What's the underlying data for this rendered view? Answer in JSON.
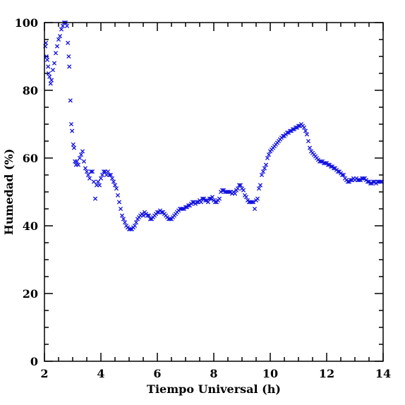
{
  "chart_data": {
    "type": "scatter",
    "xlabel": "Tiempo Universal (h)",
    "ylabel": "Humedad (%)",
    "xlim": [
      2,
      14
    ],
    "ylim": [
      0,
      100
    ],
    "xticks": [
      "2",
      "4",
      "6",
      "8",
      "10",
      "12",
      "14"
    ],
    "yticks": [
      "0",
      "20",
      "40",
      "60",
      "80",
      "100"
    ],
    "grid": false,
    "marker": "x",
    "color": "#1010e0",
    "points": [
      [
        2.03,
        93
      ],
      [
        2.05,
        94
      ],
      [
        2.07,
        90
      ],
      [
        2.1,
        89
      ],
      [
        2.13,
        87
      ],
      [
        2.15,
        85
      ],
      [
        2.18,
        84
      ],
      [
        2.22,
        82
      ],
      [
        2.25,
        83
      ],
      [
        2.3,
        86
      ],
      [
        2.35,
        88
      ],
      [
        2.4,
        91
      ],
      [
        2.45,
        93
      ],
      [
        2.5,
        95
      ],
      [
        2.55,
        96
      ],
      [
        2.6,
        98
      ],
      [
        2.65,
        99
      ],
      [
        2.7,
        100
      ],
      [
        2.75,
        100
      ],
      [
        2.8,
        99
      ],
      [
        2.83,
        94
      ],
      [
        2.86,
        90
      ],
      [
        2.88,
        87
      ],
      [
        2.92,
        77
      ],
      [
        2.95,
        70
      ],
      [
        2.98,
        68
      ],
      [
        3.02,
        64
      ],
      [
        3.05,
        63
      ],
      [
        3.08,
        59
      ],
      [
        3.12,
        58
      ],
      [
        3.15,
        59
      ],
      [
        3.2,
        58
      ],
      [
        3.25,
        60
      ],
      [
        3.3,
        61
      ],
      [
        3.35,
        62
      ],
      [
        3.4,
        59
      ],
      [
        3.45,
        57
      ],
      [
        3.5,
        56
      ],
      [
        3.55,
        55
      ],
      [
        3.6,
        54
      ],
      [
        3.65,
        56
      ],
      [
        3.7,
        56
      ],
      [
        3.75,
        53
      ],
      [
        3.8,
        48
      ],
      [
        3.85,
        52
      ],
      [
        3.9,
        53
      ],
      [
        3.95,
        52
      ],
      [
        4.0,
        54
      ],
      [
        4.05,
        55
      ],
      [
        4.1,
        56
      ],
      [
        4.15,
        56
      ],
      [
        4.2,
        55
      ],
      [
        4.25,
        56
      ],
      [
        4.3,
        55
      ],
      [
        4.35,
        55
      ],
      [
        4.4,
        54
      ],
      [
        4.45,
        53
      ],
      [
        4.5,
        52
      ],
      [
        4.55,
        51
      ],
      [
        4.6,
        49
      ],
      [
        4.65,
        47
      ],
      [
        4.7,
        45
      ],
      [
        4.75,
        43
      ],
      [
        4.8,
        42
      ],
      [
        4.85,
        41
      ],
      [
        4.9,
        40
      ],
      [
        4.95,
        39.5
      ],
      [
        5.0,
        39
      ],
      [
        5.05,
        39
      ],
      [
        5.1,
        39
      ],
      [
        5.15,
        39.5
      ],
      [
        5.2,
        40
      ],
      [
        5.25,
        41
      ],
      [
        5.3,
        42
      ],
      [
        5.35,
        42.5
      ],
      [
        5.4,
        43
      ],
      [
        5.45,
        43.5
      ],
      [
        5.5,
        43
      ],
      [
        5.55,
        44
      ],
      [
        5.6,
        43.5
      ],
      [
        5.65,
        43
      ],
      [
        5.7,
        43
      ],
      [
        5.75,
        42
      ],
      [
        5.8,
        42
      ],
      [
        5.85,
        42.5
      ],
      [
        5.9,
        43
      ],
      [
        5.95,
        43.5
      ],
      [
        6.0,
        44
      ],
      [
        6.05,
        44
      ],
      [
        6.1,
        44.5
      ],
      [
        6.15,
        44
      ],
      [
        6.2,
        44
      ],
      [
        6.25,
        43.5
      ],
      [
        6.3,
        43
      ],
      [
        6.35,
        42.5
      ],
      [
        6.4,
        42
      ],
      [
        6.45,
        42
      ],
      [
        6.5,
        42
      ],
      [
        6.55,
        42.5
      ],
      [
        6.6,
        43
      ],
      [
        6.65,
        43.5
      ],
      [
        6.7,
        44
      ],
      [
        6.75,
        44.5
      ],
      [
        6.8,
        45
      ],
      [
        6.85,
        45
      ],
      [
        6.9,
        45
      ],
      [
        6.95,
        45
      ],
      [
        7.0,
        45.5
      ],
      [
        7.05,
        45.5
      ],
      [
        7.1,
        46
      ],
      [
        7.15,
        46
      ],
      [
        7.2,
        46.5
      ],
      [
        7.25,
        47
      ],
      [
        7.3,
        47
      ],
      [
        7.35,
        46.5
      ],
      [
        7.4,
        47
      ],
      [
        7.45,
        47
      ],
      [
        7.5,
        47.5
      ],
      [
        7.55,
        47
      ],
      [
        7.6,
        48
      ],
      [
        7.65,
        48
      ],
      [
        7.7,
        47.5
      ],
      [
        7.75,
        47.5
      ],
      [
        7.8,
        47
      ],
      [
        7.85,
        48
      ],
      [
        7.9,
        48
      ],
      [
        7.95,
        48.5
      ],
      [
        8.0,
        47.5
      ],
      [
        8.05,
        47
      ],
      [
        8.1,
        47
      ],
      [
        8.15,
        47.5
      ],
      [
        8.2,
        48
      ],
      [
        8.25,
        50
      ],
      [
        8.3,
        50.5
      ],
      [
        8.35,
        50.5
      ],
      [
        8.4,
        50
      ],
      [
        8.45,
        50
      ],
      [
        8.5,
        50
      ],
      [
        8.55,
        50
      ],
      [
        8.6,
        50
      ],
      [
        8.65,
        49.5
      ],
      [
        8.7,
        50
      ],
      [
        8.75,
        49.5
      ],
      [
        8.8,
        50.5
      ],
      [
        8.85,
        51
      ],
      [
        8.9,
        52
      ],
      [
        8.95,
        52
      ],
      [
        9.0,
        51
      ],
      [
        9.05,
        50.5
      ],
      [
        9.1,
        49
      ],
      [
        9.15,
        48.5
      ],
      [
        9.2,
        47.5
      ],
      [
        9.25,
        47
      ],
      [
        9.3,
        47
      ],
      [
        9.35,
        47
      ],
      [
        9.4,
        47
      ],
      [
        9.45,
        45
      ],
      [
        9.5,
        47.5
      ],
      [
        9.55,
        48
      ],
      [
        9.6,
        51
      ],
      [
        9.65,
        52
      ],
      [
        9.7,
        55
      ],
      [
        9.75,
        56
      ],
      [
        9.8,
        57
      ],
      [
        9.85,
        58
      ],
      [
        9.9,
        60
      ],
      [
        9.95,
        61
      ],
      [
        10.0,
        62
      ],
      [
        10.05,
        62.5
      ],
      [
        10.1,
        63
      ],
      [
        10.15,
        63.5
      ],
      [
        10.2,
        64
      ],
      [
        10.25,
        64.5
      ],
      [
        10.3,
        65
      ],
      [
        10.35,
        65.5
      ],
      [
        10.4,
        66
      ],
      [
        10.45,
        66.5
      ],
      [
        10.5,
        66.5
      ],
      [
        10.55,
        67
      ],
      [
        10.6,
        67.5
      ],
      [
        10.65,
        67.5
      ],
      [
        10.7,
        68
      ],
      [
        10.75,
        68
      ],
      [
        10.8,
        68.5
      ],
      [
        10.85,
        68.5
      ],
      [
        10.9,
        69
      ],
      [
        10.95,
        69
      ],
      [
        11.0,
        69.5
      ],
      [
        11.05,
        69.5
      ],
      [
        11.1,
        70
      ],
      [
        11.15,
        69.5
      ],
      [
        11.2,
        69
      ],
      [
        11.25,
        68
      ],
      [
        11.3,
        67
      ],
      [
        11.35,
        65
      ],
      [
        11.4,
        63
      ],
      [
        11.45,
        62
      ],
      [
        11.5,
        61.5
      ],
      [
        11.55,
        61
      ],
      [
        11.6,
        60.5
      ],
      [
        11.65,
        60
      ],
      [
        11.7,
        59.5
      ],
      [
        11.75,
        59
      ],
      [
        11.8,
        59
      ],
      [
        11.85,
        59
      ],
      [
        11.9,
        58.5
      ],
      [
        11.95,
        58.5
      ],
      [
        12.0,
        58.5
      ],
      [
        12.05,
        58
      ],
      [
        12.1,
        58
      ],
      [
        12.15,
        57.5
      ],
      [
        12.2,
        57.5
      ],
      [
        12.25,
        57
      ],
      [
        12.3,
        57
      ],
      [
        12.35,
        56.5
      ],
      [
        12.4,
        56
      ],
      [
        12.45,
        56
      ],
      [
        12.5,
        55.5
      ],
      [
        12.55,
        55
      ],
      [
        12.6,
        55
      ],
      [
        12.65,
        54
      ],
      [
        12.7,
        53.5
      ],
      [
        12.75,
        53
      ],
      [
        12.8,
        53
      ],
      [
        12.85,
        53.5
      ],
      [
        12.9,
        53.5
      ],
      [
        12.95,
        54
      ],
      [
        13.0,
        53.5
      ],
      [
        13.05,
        54
      ],
      [
        13.1,
        53.5
      ],
      [
        13.15,
        53.5
      ],
      [
        13.2,
        53.5
      ],
      [
        13.25,
        54
      ],
      [
        13.3,
        54
      ],
      [
        13.35,
        54
      ],
      [
        13.4,
        53.5
      ],
      [
        13.45,
        53
      ],
      [
        13.5,
        53
      ],
      [
        13.55,
        52.5
      ],
      [
        13.6,
        52.5
      ],
      [
        13.65,
        53
      ],
      [
        13.7,
        53
      ],
      [
        13.75,
        52.5
      ],
      [
        13.8,
        53
      ],
      [
        13.85,
        53
      ],
      [
        13.9,
        53
      ],
      [
        13.95,
        53
      ]
    ]
  }
}
